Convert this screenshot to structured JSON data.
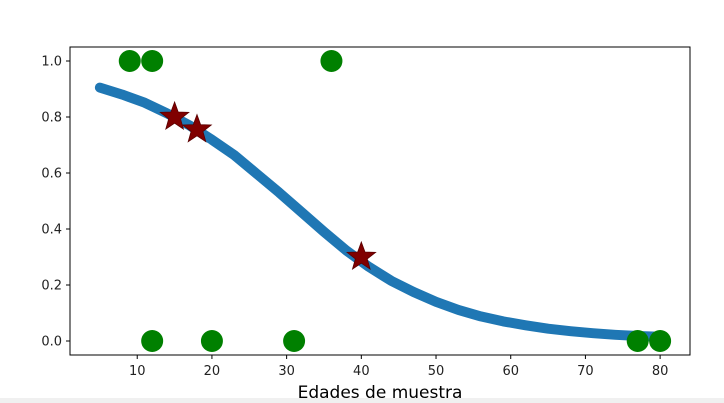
{
  "chart_data": {
    "type": "scatter",
    "title": "",
    "xlabel": "Edades de muestra",
    "ylabel": "",
    "xlim": [
      1,
      84
    ],
    "ylim": [
      -0.05,
      1.05
    ],
    "x_ticks": [
      10,
      20,
      30,
      40,
      50,
      60,
      70,
      80
    ],
    "y_ticks": [
      0.0,
      0.2,
      0.4,
      0.6,
      0.8,
      1.0
    ],
    "x_tick_labels": [
      "10",
      "20",
      "30",
      "40",
      "50",
      "60",
      "70",
      "80"
    ],
    "y_tick_labels": [
      "0.0",
      "0.2",
      "0.4",
      "0.6",
      "0.8",
      "1.0"
    ],
    "grid": false,
    "series": [
      {
        "kind": "line",
        "color": "#1f77b4",
        "x": [
          5,
          8,
          11,
          14,
          17,
          20,
          23,
          26,
          29,
          32,
          35,
          38,
          41,
          44,
          47,
          50,
          53,
          56,
          59,
          62,
          65,
          68,
          71,
          74,
          77,
          80
        ],
        "y": [
          0.905,
          0.88,
          0.851,
          0.813,
          0.77,
          0.719,
          0.664,
          0.597,
          0.53,
          0.46,
          0.39,
          0.323,
          0.265,
          0.215,
          0.175,
          0.14,
          0.111,
          0.088,
          0.07,
          0.056,
          0.044,
          0.035,
          0.028,
          0.022,
          0.018,
          0.015
        ]
      },
      {
        "kind": "points",
        "marker": "circle",
        "color": "#008000",
        "x": [
          9,
          12,
          36,
          12,
          20,
          31,
          77,
          80
        ],
        "y": [
          1,
          1,
          1,
          0,
          0,
          0,
          0,
          0
        ]
      },
      {
        "kind": "points",
        "marker": "star",
        "color": "#800000",
        "x": [
          15,
          18,
          40
        ],
        "y": [
          0.8,
          0.755,
          0.3
        ]
      }
    ]
  }
}
